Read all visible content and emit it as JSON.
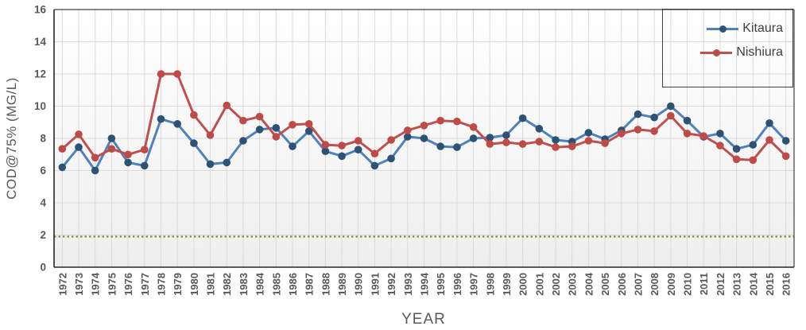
{
  "chart_data": {
    "type": "line",
    "title": "",
    "xlabel": "YEAR",
    "ylabel": "COD@75% (MG/L)",
    "ylim": [
      0,
      16
    ],
    "yticks": [
      0,
      2,
      4,
      6,
      8,
      10,
      12,
      14,
      16
    ],
    "grid": "both",
    "legend_position": "top-right",
    "categories": [
      "1972",
      "1973",
      "1974",
      "1975",
      "1976",
      "1977",
      "1978",
      "1979",
      "1980",
      "1981",
      "1982",
      "1983",
      "1984",
      "1985",
      "1986",
      "1987",
      "1988",
      "1989",
      "1990",
      "1991",
      "1992",
      "1993",
      "1994",
      "1995",
      "1996",
      "1997",
      "1998",
      "1999",
      "2000",
      "2001",
      "2002",
      "2003",
      "2004",
      "2005",
      "2006",
      "2007",
      "2008",
      "2009",
      "2010",
      "2011",
      "2012",
      "2013",
      "2014",
      "2015",
      "2016"
    ],
    "series": [
      {
        "name": "Kitaura",
        "color": "#4F81BD",
        "marker_color": "#2E5274",
        "values": [
          6.2,
          7.45,
          6.0,
          8.0,
          6.5,
          6.3,
          9.2,
          8.9,
          7.7,
          6.4,
          6.5,
          7.85,
          8.55,
          8.65,
          7.5,
          8.45,
          7.2,
          6.9,
          7.3,
          6.3,
          6.75,
          8.1,
          8.0,
          7.5,
          7.45,
          8.0,
          8.05,
          8.2,
          9.25,
          8.6,
          7.9,
          7.8,
          8.35,
          7.95,
          8.5,
          9.5,
          9.3,
          10.0,
          9.1,
          8.1,
          8.3,
          7.35,
          7.6,
          8.95,
          7.85
        ]
      },
      {
        "name": "Nishiura",
        "color": "#C0504D",
        "marker_color": "#BE4B48",
        "values": [
          7.35,
          8.25,
          6.8,
          7.35,
          7.0,
          7.3,
          12.0,
          12.0,
          9.45,
          8.2,
          10.05,
          9.1,
          9.35,
          8.1,
          8.85,
          8.9,
          7.6,
          7.55,
          7.85,
          7.05,
          7.9,
          8.5,
          8.8,
          9.1,
          9.05,
          8.7,
          7.65,
          7.75,
          7.65,
          7.8,
          7.45,
          7.5,
          7.85,
          7.7,
          8.3,
          8.55,
          8.45,
          9.4,
          8.3,
          8.15,
          7.55,
          6.7,
          6.65,
          7.9,
          6.9
        ]
      }
    ],
    "reference_line": {
      "value": 1.9,
      "color": "#77933C",
      "style": "dotted"
    }
  },
  "legend": {
    "items": [
      {
        "label": "Kitaura"
      },
      {
        "label": "Nishiura"
      }
    ]
  },
  "colors": {
    "gridline": "#DBDBDB",
    "axis": "#262626",
    "plot_border": "#404040",
    "tick_label": "#595959",
    "axis_title": "#595959",
    "legend_text": "#404040",
    "plot_bg_top": "#FEFEFE",
    "plot_bg_bottom": "#EEEEEE"
  }
}
